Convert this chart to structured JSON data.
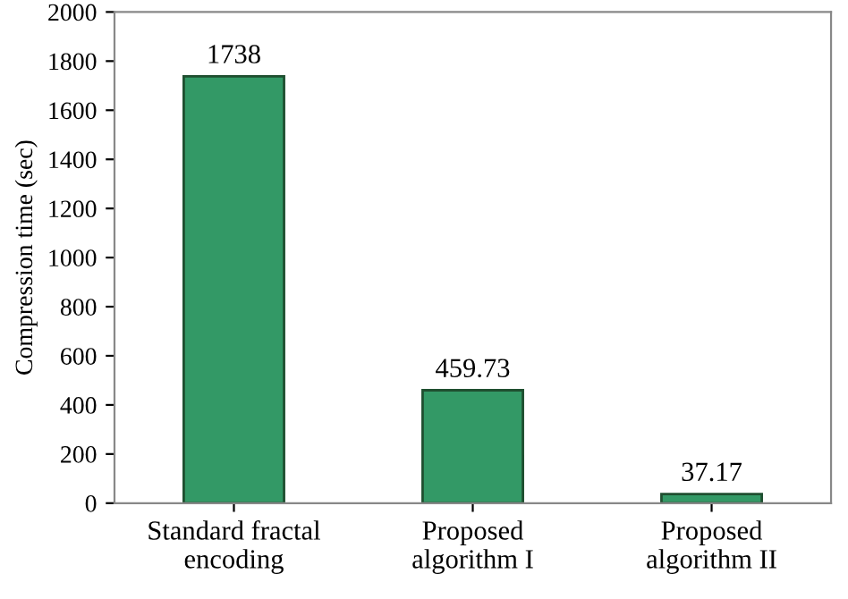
{
  "chart_data": {
    "type": "bar",
    "ylabel": "Compression time (sec)",
    "categories": [
      "Standard fractal encoding",
      "Proposed algorithm I",
      "Proposed algorithm II"
    ],
    "values": [
      1738,
      459.73,
      37.17
    ],
    "color": "#339966",
    "ylim": [
      0,
      2000
    ],
    "yticks": [
      0,
      200,
      400,
      600,
      800,
      1000,
      1200,
      1400,
      1600,
      1800,
      2000
    ],
    "data_labels": true,
    "grid": false,
    "legend": false
  }
}
